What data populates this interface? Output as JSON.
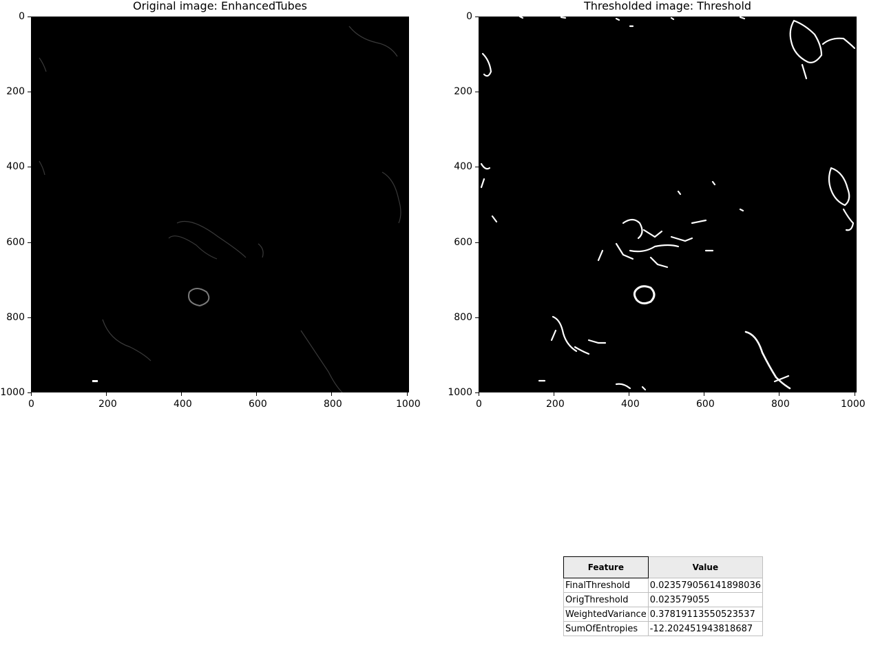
{
  "panels": [
    {
      "title": "Original image: EnhancedTubes",
      "x_ticks": [
        "0",
        "200",
        "400",
        "600",
        "800",
        "1000"
      ],
      "y_ticks": [
        "0",
        "200",
        "400",
        "600",
        "800",
        "1000"
      ],
      "style": "grayscale-faint"
    },
    {
      "title": "Thresholded image: Threshold",
      "x_ticks": [
        "0",
        "200",
        "400",
        "600",
        "800",
        "1000"
      ],
      "y_ticks": [
        "0",
        "200",
        "400",
        "600",
        "800",
        "1000"
      ],
      "style": "binary"
    }
  ],
  "table": {
    "headers": [
      "Feature",
      "Value"
    ],
    "rows": [
      [
        "FinalThreshold",
        "0.023579056141898036"
      ],
      [
        "OrigThreshold",
        "0.023579055"
      ],
      [
        "WeightedVariance",
        "0.37819113550523537"
      ],
      [
        "SumOfEntropies",
        "-12.202451943818687"
      ]
    ]
  }
}
